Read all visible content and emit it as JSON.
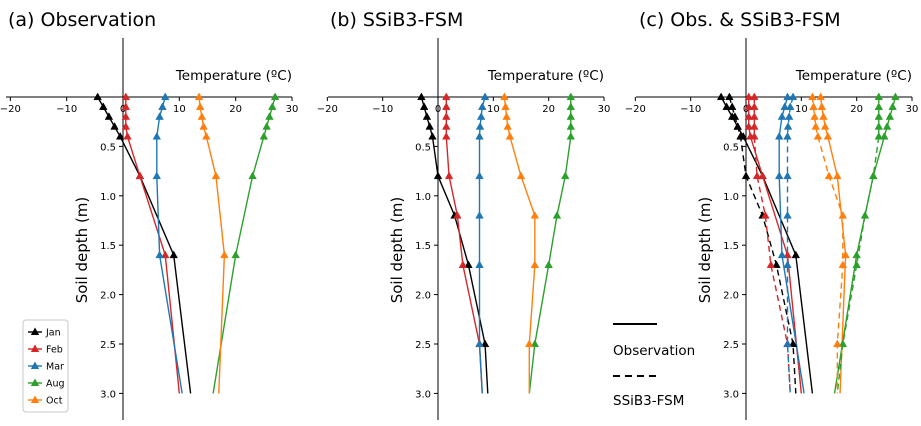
{
  "chart_data": [
    {
      "type": "line",
      "title": "(a) Observation",
      "xlabel": "Temperature (ºC)",
      "ylabel": "Soil depth (m)",
      "xlim": [
        -20,
        30
      ],
      "ylim": [
        3.0,
        0
      ],
      "x_ticks": [
        "−20",
        "−10",
        "0",
        "10",
        "20",
        "30"
      ],
      "y_ticks": [
        "0.5",
        "1.0",
        "1.5",
        "2.0",
        "2.5",
        "3.0"
      ],
      "legend": {
        "placement": "lower-left",
        "entries": [
          "Jan",
          "Feb",
          "Mar",
          "Aug",
          "Oct"
        ]
      },
      "series": [
        {
          "name": "Jan",
          "color": "#000000",
          "linestyle": "solid",
          "marker_count": 7,
          "points": [
            [
              -4.5,
              0.0
            ],
            [
              -3.5,
              0.1
            ],
            [
              -2.5,
              0.2
            ],
            [
              -1.5,
              0.3
            ],
            [
              -0.5,
              0.4
            ],
            [
              3.0,
              0.8
            ],
            [
              9.0,
              1.6
            ],
            [
              12.0,
              3.0
            ]
          ]
        },
        {
          "name": "Feb",
          "color": "#d62728",
          "linestyle": "solid",
          "marker_count": 7,
          "points": [
            [
              0.5,
              0.0
            ],
            [
              0.5,
              0.1
            ],
            [
              0.5,
              0.2
            ],
            [
              0.5,
              0.3
            ],
            [
              0.8,
              0.4
            ],
            [
              3.0,
              0.8
            ],
            [
              7.5,
              1.6
            ],
            [
              10.0,
              3.0
            ]
          ]
        },
        {
          "name": "Mar",
          "color": "#1f77b4",
          "linestyle": "solid",
          "marker_count": 7,
          "points": [
            [
              7.5,
              0.0
            ],
            [
              7.0,
              0.1
            ],
            [
              6.5,
              0.2
            ],
            [
              6.0,
              0.4
            ],
            [
              6.0,
              0.8
            ],
            [
              6.5,
              1.6
            ],
            [
              10.5,
              3.0
            ]
          ]
        },
        {
          "name": "Aug",
          "color": "#2ca02c",
          "linestyle": "solid",
          "marker_count": 7,
          "points": [
            [
              27.0,
              0.0
            ],
            [
              26.5,
              0.1
            ],
            [
              26.0,
              0.2
            ],
            [
              25.5,
              0.3
            ],
            [
              25.0,
              0.4
            ],
            [
              23.0,
              0.8
            ],
            [
              20.0,
              1.6
            ],
            [
              16.0,
              3.0
            ]
          ]
        },
        {
          "name": "Oct",
          "color": "#ff7f0e",
          "linestyle": "solid",
          "marker_count": 7,
          "points": [
            [
              13.5,
              0.0
            ],
            [
              13.7,
              0.1
            ],
            [
              14.0,
              0.2
            ],
            [
              14.3,
              0.3
            ],
            [
              14.8,
              0.4
            ],
            [
              16.5,
              0.8
            ],
            [
              18.0,
              1.6
            ],
            [
              17.0,
              3.0
            ]
          ]
        }
      ]
    },
    {
      "type": "line",
      "title": "(b) SSiB3-FSM",
      "xlabel": "Temperature (ºC)",
      "ylabel": "Soil depth (m)",
      "xlim": [
        -20,
        30
      ],
      "ylim": [
        3.0,
        0
      ],
      "x_ticks": [
        "−20",
        "−10",
        "0",
        "10",
        "20",
        "30"
      ],
      "y_ticks": [
        "0.5",
        "1.0",
        "1.5",
        "2.0",
        "2.5",
        "3.0"
      ],
      "series": [
        {
          "name": "Jan",
          "color": "#000000",
          "linestyle": "solid",
          "points": [
            [
              -3.0,
              0.0
            ],
            [
              -2.5,
              0.1
            ],
            [
              -2.0,
              0.2
            ],
            [
              -1.5,
              0.3
            ],
            [
              -1.0,
              0.4
            ],
            [
              0.0,
              0.8
            ],
            [
              3.0,
              1.2
            ],
            [
              5.5,
              1.7
            ],
            [
              8.5,
              2.5
            ],
            [
              9.0,
              3.0
            ]
          ]
        },
        {
          "name": "Feb",
          "color": "#d62728",
          "linestyle": "solid",
          "points": [
            [
              1.5,
              0.0
            ],
            [
              1.5,
              0.1
            ],
            [
              1.5,
              0.2
            ],
            [
              1.5,
              0.3
            ],
            [
              1.5,
              0.4
            ],
            [
              2.0,
              0.8
            ],
            [
              3.5,
              1.2
            ],
            [
              4.5,
              1.7
            ],
            [
              7.5,
              2.5
            ],
            [
              8.0,
              3.0
            ]
          ]
        },
        {
          "name": "Mar",
          "color": "#1f77b4",
          "linestyle": "solid",
          "points": [
            [
              8.5,
              0.0
            ],
            [
              8.0,
              0.1
            ],
            [
              7.8,
              0.2
            ],
            [
              7.6,
              0.3
            ],
            [
              7.5,
              0.4
            ],
            [
              7.5,
              0.8
            ],
            [
              7.5,
              1.2
            ],
            [
              7.5,
              1.7
            ],
            [
              7.5,
              2.5
            ],
            [
              8.0,
              3.0
            ]
          ]
        },
        {
          "name": "Aug",
          "color": "#2ca02c",
          "linestyle": "solid",
          "points": [
            [
              24.0,
              0.0
            ],
            [
              24.0,
              0.1
            ],
            [
              24.0,
              0.2
            ],
            [
              24.0,
              0.3
            ],
            [
              24.0,
              0.4
            ],
            [
              23.0,
              0.8
            ],
            [
              21.5,
              1.2
            ],
            [
              20.0,
              1.7
            ],
            [
              17.5,
              2.5
            ],
            [
              16.5,
              3.0
            ]
          ]
        },
        {
          "name": "Oct",
          "color": "#ff7f0e",
          "linestyle": "solid",
          "points": [
            [
              12.0,
              0.0
            ],
            [
              12.2,
              0.1
            ],
            [
              12.4,
              0.2
            ],
            [
              12.6,
              0.3
            ],
            [
              13.0,
              0.4
            ],
            [
              15.0,
              0.8
            ],
            [
              17.5,
              1.2
            ],
            [
              17.5,
              1.7
            ],
            [
              16.5,
              2.5
            ],
            [
              16.5,
              3.0
            ]
          ]
        }
      ]
    },
    {
      "type": "line",
      "title": "(c) Obs. & SSiB3-FSM",
      "xlabel": "Temperature (ºC)",
      "ylabel": "Soil depth (m)",
      "xlim": [
        -20,
        30
      ],
      "ylim": [
        3.0,
        0
      ],
      "x_ticks": [
        "−20",
        "−10",
        "0",
        "10",
        "20",
        "30"
      ],
      "y_ticks": [
        "0.5",
        "1.0",
        "1.5",
        "2.0",
        "2.5",
        "3.0"
      ],
      "legend": {
        "placement": "outside-left",
        "entries": [
          "Observation",
          "SSiB3-FSM"
        ]
      },
      "series": [
        {
          "name": "Jan",
          "source": "Observation",
          "color": "#000000",
          "linestyle": "solid",
          "points": [
            [
              -4.5,
              0.0
            ],
            [
              -3.5,
              0.1
            ],
            [
              -2.5,
              0.2
            ],
            [
              -1.5,
              0.3
            ],
            [
              -0.5,
              0.4
            ],
            [
              3.0,
              0.8
            ],
            [
              9.0,
              1.6
            ],
            [
              12.0,
              3.0
            ]
          ]
        },
        {
          "name": "Feb",
          "source": "Observation",
          "color": "#d62728",
          "linestyle": "solid",
          "points": [
            [
              0.5,
              0.0
            ],
            [
              0.5,
              0.1
            ],
            [
              0.5,
              0.2
            ],
            [
              0.5,
              0.3
            ],
            [
              0.8,
              0.4
            ],
            [
              3.0,
              0.8
            ],
            [
              7.5,
              1.6
            ],
            [
              10.0,
              3.0
            ]
          ]
        },
        {
          "name": "Mar",
          "source": "Observation",
          "color": "#1f77b4",
          "linestyle": "solid",
          "points": [
            [
              7.5,
              0.0
            ],
            [
              7.0,
              0.1
            ],
            [
              6.5,
              0.2
            ],
            [
              6.0,
              0.4
            ],
            [
              6.0,
              0.8
            ],
            [
              6.5,
              1.6
            ],
            [
              10.5,
              3.0
            ]
          ]
        },
        {
          "name": "Aug",
          "source": "Observation",
          "color": "#2ca02c",
          "linestyle": "solid",
          "points": [
            [
              27.0,
              0.0
            ],
            [
              26.5,
              0.1
            ],
            [
              26.0,
              0.2
            ],
            [
              25.5,
              0.3
            ],
            [
              25.0,
              0.4
            ],
            [
              23.0,
              0.8
            ],
            [
              20.0,
              1.6
            ],
            [
              16.0,
              3.0
            ]
          ]
        },
        {
          "name": "Oct",
          "source": "Observation",
          "color": "#ff7f0e",
          "linestyle": "solid",
          "points": [
            [
              13.5,
              0.0
            ],
            [
              13.7,
              0.1
            ],
            [
              14.0,
              0.2
            ],
            [
              14.3,
              0.3
            ],
            [
              14.8,
              0.4
            ],
            [
              16.5,
              0.8
            ],
            [
              18.0,
              1.6
            ],
            [
              17.0,
              3.0
            ]
          ]
        },
        {
          "name": "Jan",
          "source": "SSiB3-FSM",
          "color": "#000000",
          "linestyle": "dashed",
          "points": [
            [
              -3.0,
              0.0
            ],
            [
              -2.5,
              0.1
            ],
            [
              -2.0,
              0.2
            ],
            [
              -1.5,
              0.3
            ],
            [
              -1.0,
              0.4
            ],
            [
              0.0,
              0.8
            ],
            [
              3.0,
              1.2
            ],
            [
              5.5,
              1.7
            ],
            [
              8.5,
              2.5
            ],
            [
              9.0,
              3.0
            ]
          ]
        },
        {
          "name": "Feb",
          "source": "SSiB3-FSM",
          "color": "#d62728",
          "linestyle": "dashed",
          "points": [
            [
              1.5,
              0.0
            ],
            [
              1.5,
              0.1
            ],
            [
              1.5,
              0.2
            ],
            [
              1.5,
              0.3
            ],
            [
              1.5,
              0.4
            ],
            [
              2.0,
              0.8
            ],
            [
              3.5,
              1.2
            ],
            [
              4.5,
              1.7
            ],
            [
              7.5,
              2.5
            ],
            [
              8.0,
              3.0
            ]
          ]
        },
        {
          "name": "Mar",
          "source": "SSiB3-FSM",
          "color": "#1f77b4",
          "linestyle": "dashed",
          "points": [
            [
              8.5,
              0.0
            ],
            [
              8.0,
              0.1
            ],
            [
              7.8,
              0.2
            ],
            [
              7.6,
              0.3
            ],
            [
              7.5,
              0.4
            ],
            [
              7.5,
              0.8
            ],
            [
              7.5,
              1.2
            ],
            [
              7.5,
              1.7
            ],
            [
              7.5,
              2.5
            ],
            [
              8.0,
              3.0
            ]
          ]
        },
        {
          "name": "Aug",
          "source": "SSiB3-FSM",
          "color": "#2ca02c",
          "linestyle": "dashed",
          "points": [
            [
              24.0,
              0.0
            ],
            [
              24.0,
              0.1
            ],
            [
              24.0,
              0.2
            ],
            [
              24.0,
              0.3
            ],
            [
              24.0,
              0.4
            ],
            [
              23.0,
              0.8
            ],
            [
              21.5,
              1.2
            ],
            [
              20.0,
              1.7
            ],
            [
              17.5,
              2.5
            ],
            [
              16.5,
              3.0
            ]
          ]
        },
        {
          "name": "Oct",
          "source": "SSiB3-FSM",
          "color": "#ff7f0e",
          "linestyle": "dashed",
          "points": [
            [
              12.0,
              0.0
            ],
            [
              12.2,
              0.1
            ],
            [
              12.4,
              0.2
            ],
            [
              12.6,
              0.3
            ],
            [
              13.0,
              0.4
            ],
            [
              15.0,
              0.8
            ],
            [
              17.5,
              1.2
            ],
            [
              17.5,
              1.7
            ],
            [
              16.5,
              2.5
            ],
            [
              16.5,
              3.0
            ]
          ]
        }
      ]
    }
  ],
  "style_legend": {
    "observation_label": "Observation",
    "model_label": "SSiB3-FSM"
  }
}
